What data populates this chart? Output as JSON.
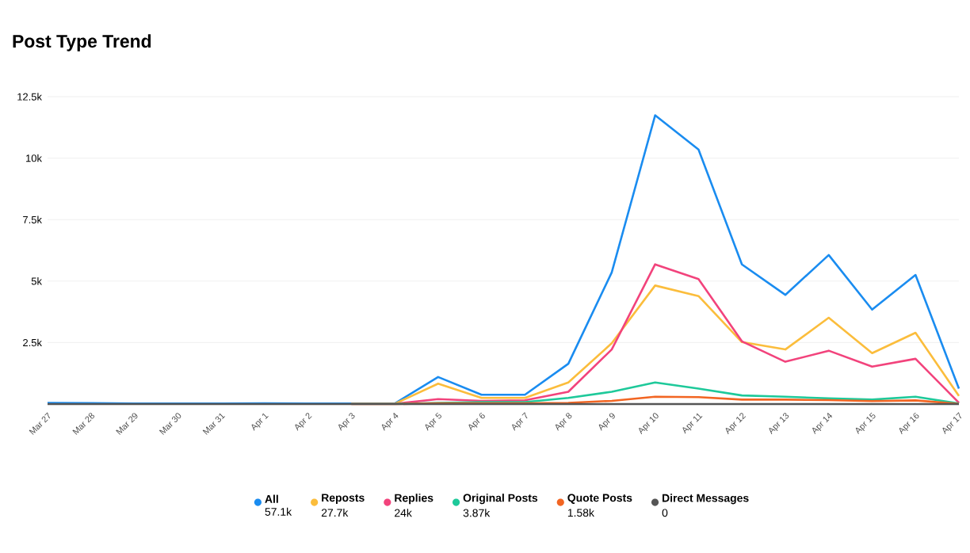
{
  "chart_data": {
    "type": "line",
    "title": "Post Type Trend",
    "categories": [
      "Mar 27",
      "Mar 28",
      "Mar 29",
      "Mar 30",
      "Mar 31",
      "Apr 1",
      "Apr 2",
      "Apr 3",
      "Apr 4",
      "Apr 5",
      "Apr 6",
      "Apr 7",
      "Apr 8",
      "Apr 9",
      "Apr 10",
      "Apr 11",
      "Apr 12",
      "Apr 13",
      "Apr 14",
      "Apr 15",
      "Apr 16",
      "Apr 17"
    ],
    "series": [
      {
        "name": "All",
        "color": "#1a8cf0",
        "values": [
          50,
          40,
          20,
          20,
          20,
          30,
          20,
          20,
          20,
          1100,
          380,
          380,
          1640,
          5350,
          11740,
          10350,
          5680,
          4440,
          6060,
          3840,
          5250,
          630
        ]
      },
      {
        "name": "Reposts",
        "color": "#fbbd3c",
        "values": [
          null,
          null,
          null,
          null,
          null,
          null,
          null,
          10,
          10,
          830,
          250,
          250,
          880,
          2470,
          4820,
          4390,
          2520,
          2220,
          3510,
          2070,
          2900,
          330
        ]
      },
      {
        "name": "Replies",
        "color": "#f2437c",
        "values": [
          null,
          null,
          null,
          null,
          null,
          null,
          null,
          10,
          10,
          200,
          130,
          150,
          500,
          2220,
          5680,
          5080,
          2550,
          1720,
          2170,
          1520,
          1840,
          50
        ]
      },
      {
        "name": "Original Posts",
        "color": "#1ec99a",
        "values": [
          null,
          null,
          null,
          null,
          null,
          null,
          null,
          10,
          10,
          50,
          80,
          80,
          250,
          500,
          880,
          630,
          350,
          300,
          230,
          180,
          300,
          20
        ]
      },
      {
        "name": "Quote Posts",
        "color": "#f26522",
        "values": [
          null,
          null,
          null,
          null,
          null,
          null,
          null,
          0,
          0,
          30,
          30,
          30,
          50,
          130,
          300,
          280,
          180,
          180,
          160,
          120,
          150,
          10
        ]
      },
      {
        "name": "Direct Messages",
        "color": "#555555",
        "values": [
          0,
          0,
          0,
          0,
          0,
          0,
          0,
          0,
          0,
          0,
          0,
          0,
          0,
          0,
          0,
          0,
          0,
          0,
          0,
          0,
          0,
          0
        ]
      }
    ],
    "annotations": [
      "57.1k",
      "27.7k",
      "24k",
      "3.87k",
      "1.58k",
      "0"
    ],
    "ylim": [
      0,
      12500
    ],
    "yticks": [
      {
        "value": 2500,
        "label": "2.5k"
      },
      {
        "value": 5000,
        "label": "5k"
      },
      {
        "value": 7500,
        "label": "7.5k"
      },
      {
        "value": 10000,
        "label": "10k"
      },
      {
        "value": 12500,
        "label": "12.5k"
      }
    ],
    "grid": "y",
    "legend": "bottom",
    "marker": "none",
    "line_style": "solid"
  }
}
